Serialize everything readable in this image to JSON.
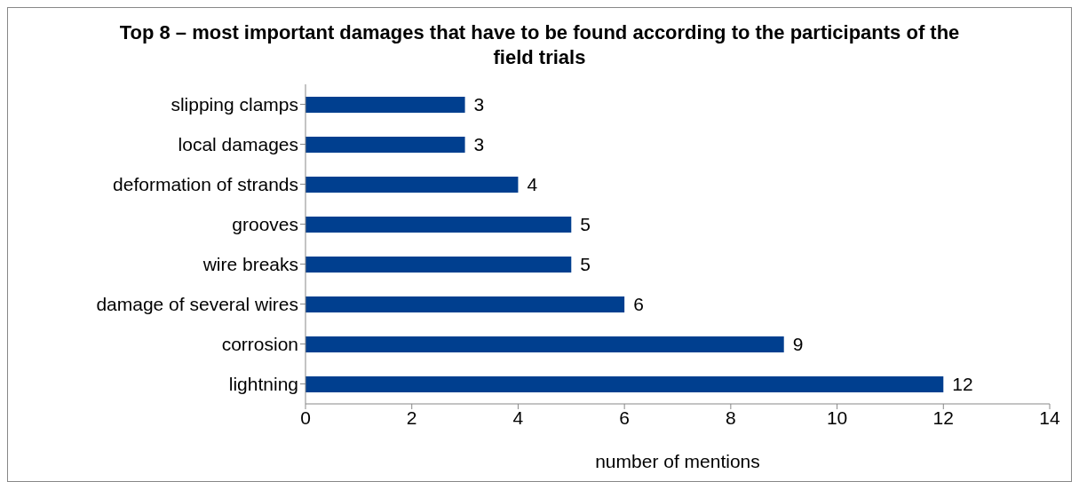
{
  "chart_data": {
    "type": "bar",
    "orientation": "horizontal",
    "title": "Top 8 – most important damages that have to be found according to the participants of the field trials",
    "xlabel": "number of mentions",
    "categories": [
      "slipping clamps",
      "local damages",
      "deformation of strands",
      "grooves",
      "wire breaks",
      "damage of several wires",
      "corrosion",
      "lightning"
    ],
    "values": [
      3,
      3,
      4,
      5,
      5,
      6,
      9,
      12
    ],
    "color": "#003f8f",
    "xlim": [
      0,
      14
    ],
    "xticks": [
      0,
      2,
      4,
      6,
      8,
      10,
      12,
      14
    ],
    "data_labels": true
  }
}
